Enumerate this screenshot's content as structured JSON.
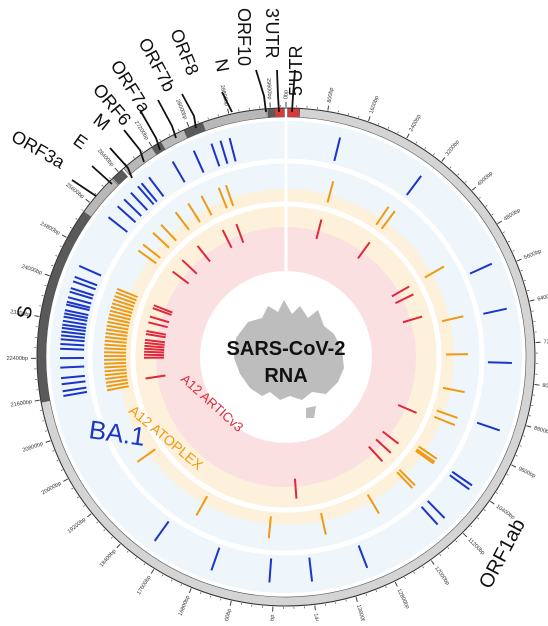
{
  "center": {
    "line1": "SARS-CoV-2",
    "line2": "RNA"
  },
  "gene_labels": [
    {
      "key": "orf3a",
      "text": "ORF3a"
    },
    {
      "key": "e",
      "text": "E"
    },
    {
      "key": "m",
      "text": "M"
    },
    {
      "key": "orf6",
      "text": "ORF6"
    },
    {
      "key": "orf7a",
      "text": "ORF7a"
    },
    {
      "key": "orf7b",
      "text": "ORF7b"
    },
    {
      "key": "orf8",
      "text": "ORF8"
    },
    {
      "key": "n",
      "text": "N"
    },
    {
      "key": "orf10",
      "text": "ORF10"
    },
    {
      "key": "utr3",
      "text": "3'UTR"
    },
    {
      "key": "utr5",
      "text": "5'UTR"
    },
    {
      "key": "s",
      "text": "S"
    },
    {
      "key": "orf1ab",
      "text": "ORF1ab"
    }
  ],
  "track_labels": {
    "outer": "BA.1",
    "middle": "A12 ATOPLEX",
    "inner": "A12 ARTICv3"
  },
  "tick_labels": [
    "0bp",
    "800bp",
    "1600bp",
    "2400bp",
    "3200bp",
    "4000bp",
    "4800bp",
    "5600bp",
    "6400bp",
    "7200bp",
    "8000bp",
    "8800bp",
    "9600bp",
    "10400bp",
    "11200bp",
    "12000bp",
    "12800bp",
    "13600bp",
    "14400bp",
    "15200bp",
    "16000bp",
    "16800bp",
    "17600bp",
    "18400bp",
    "19200bp",
    "20000bp",
    "20800bp",
    "21600bp",
    "22400bp",
    "23200bp",
    "24000bp",
    "24800bp",
    "25600bp",
    "26400bp",
    "27200bp",
    "28000bp",
    "28800bp",
    "29600bp"
  ],
  "colors": {
    "outer_ring_fill": "#eef5fb",
    "middle_ring_fill": "#fdf1dc",
    "inner_ring_fill": "#fbe0e2",
    "outer_marks": "#1a36c8",
    "middle_marks": "#f09a12",
    "inner_marks": "#e0283a",
    "genome_dark": "#5a5a5a",
    "genome_light": "#b8b8b8",
    "utr_red": "#d63a3a",
    "australia": "#bdbdbd",
    "label_blue": "#1a36c8",
    "label_orange": "#f09a12",
    "label_red": "#e0283a"
  },
  "mutations": {
    "genome_length": 29900,
    "outer": [
      1150,
      3050,
      5450,
      6450,
      7600,
      9050,
      10350,
      10450,
      11250,
      11450,
      13200,
      14400,
      15300,
      16550,
      17900,
      21600,
      21700,
      21850,
      21980,
      22200,
      22400,
      22600,
      22700,
      22800,
      22880,
      22960,
      23040,
      23110,
      23190,
      23280,
      23350,
      23420,
      23540,
      23600,
      23700,
      23820,
      23900,
      24050,
      24150,
      24400,
      25600,
      25900,
      26100,
      26300,
      26500,
      26600,
      26800,
      27400,
      27900,
      28300,
      28500,
      28700
    ],
    "middle": [
      1250,
      2850,
      3050,
      5000,
      6400,
      7400,
      8400,
      9100,
      9300,
      10300,
      10400,
      10450,
      11200,
      11300,
      12400,
      13900,
      15400,
      17400,
      19500,
      21550,
      21650,
      21750,
      21850,
      21950,
      22050,
      22150,
      22250,
      22350,
      22450,
      22550,
      22650,
      22750,
      22850,
      22950,
      23050,
      23150,
      23250,
      23350,
      23450,
      23550,
      23650,
      23750,
      23850,
      23950,
      24050,
      24150,
      24250,
      25400,
      25600,
      26000,
      26300,
      26800,
      27200,
      27600,
      28100,
      28300
    ],
    "inner": [
      1200,
      3000,
      5000,
      5300,
      6100,
      9400,
      10600,
      11000,
      11400,
      14600,
      21700,
      22400,
      22500,
      22600,
      22700,
      22800,
      22900,
      23000,
      23200,
      23300,
      23600,
      23800,
      24100,
      24200,
      25500,
      26000,
      26700,
      27700,
      28200
    ]
  }
}
